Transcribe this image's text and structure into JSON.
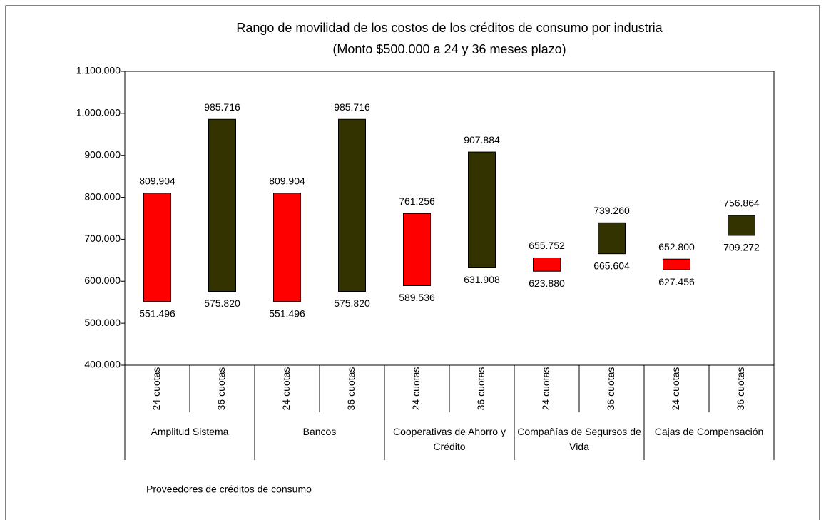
{
  "chart_data": {
    "type": "floating_bar",
    "title": "Rango de movilidad de los costos de los créditos de consumo por industria",
    "subtitle": "(Monto $500.000 a 24 y 36 meses plazo)",
    "x_label": "Proveedores de créditos de consumo",
    "groups": [
      "Amplitud Sistema",
      "Bancos",
      "Cooperativas de Ahorro y Crédito",
      "Compañías de Segursos de Vida",
      "Cajas de Compensación"
    ],
    "categories": [
      "24 cuotas",
      "36 cuotas",
      "24 cuotas",
      "36 cuotas",
      "24 cuotas",
      "36 cuotas",
      "24 cuotas",
      "36 cuotas",
      "24 cuotas",
      "36 cuotas"
    ],
    "colors": [
      "#ff0000",
      "#333300",
      "#ff0000",
      "#333300",
      "#ff0000",
      "#333300",
      "#ff0000",
      "#333300",
      "#ff0000",
      "#333300"
    ],
    "series": [
      {
        "values": [
          551496,
          575820,
          551496,
          575820,
          589536,
          631908,
          623880,
          665604,
          627456,
          709272
        ],
        "value_labels": [
          "551.496",
          "575.820",
          "551.496",
          "575.820",
          "589.536",
          "631.908",
          "623.880",
          "665.604",
          "627.456",
          "709.272"
        ]
      },
      {
        "values": [
          809904,
          985716,
          809904,
          985716,
          761256,
          907884,
          655752,
          739260,
          652800,
          756864
        ],
        "value_labels": [
          "809.904",
          "985.716",
          "809.904",
          "985.716",
          "761.256",
          "907.884",
          "655.752",
          "739.260",
          "652.800",
          "756.864"
        ]
      }
    ],
    "ylim": [
      400000,
      1100000
    ],
    "yticks": [
      {
        "value": 400000,
        "label": "400.000"
      },
      {
        "value": 500000,
        "label": "500.000"
      },
      {
        "value": 600000,
        "label": "600.000"
      },
      {
        "value": 700000,
        "label": "700.000"
      },
      {
        "value": 800000,
        "label": "800.000"
      },
      {
        "value": 900000,
        "label": "900.000"
      },
      {
        "value": 1000000,
        "label": "1.000.000"
      },
      {
        "value": 1100000,
        "label": "1.100.000"
      }
    ],
    "grid": false
  }
}
